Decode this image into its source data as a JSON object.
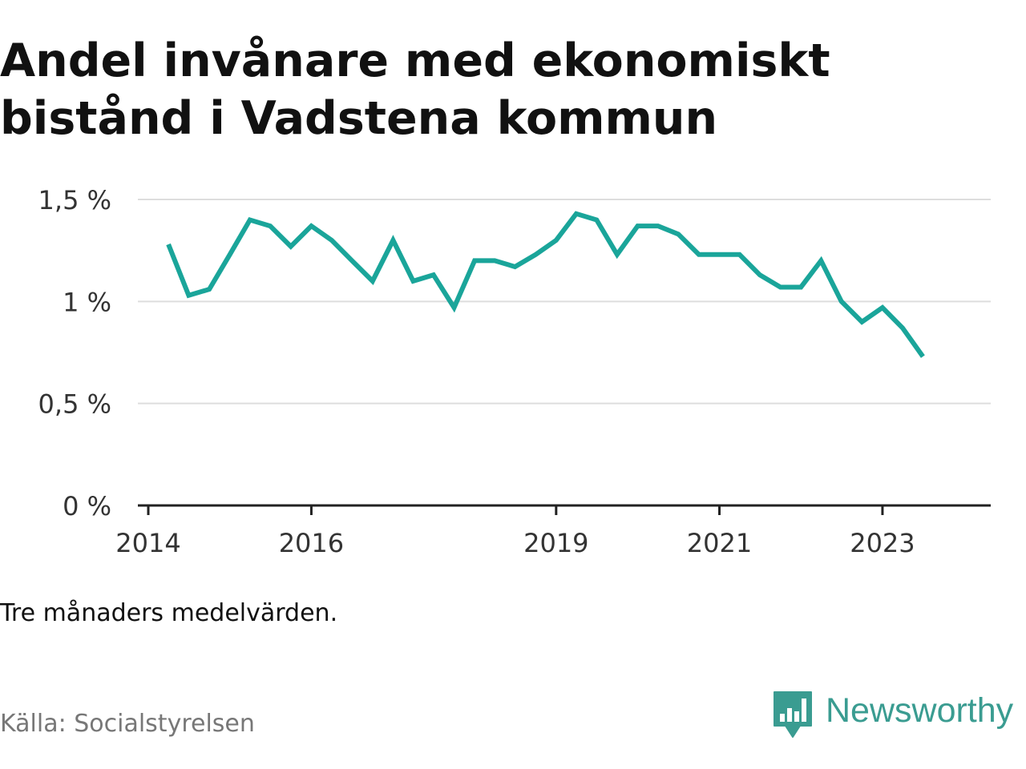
{
  "title": "Andel invånare med ekonomiskt bistånd i Vadstena kommun",
  "note": "Tre månaders medelvärden.",
  "source": "Källa: Socialstyrelsen",
  "brand": {
    "name": "Newsworthy",
    "logo_icon": "bar-chart-speech-bubble-icon"
  },
  "colors": {
    "line": "#1aa59a",
    "grid": "#dddddd",
    "axis": "#222222",
    "brand": "#3a9c91"
  },
  "chart_data": {
    "type": "line",
    "title": "Andel invånare med ekonomiskt bistånd i Vadstena kommun",
    "xlabel": "",
    "ylabel": "",
    "ylim": [
      0,
      1.5
    ],
    "yticks": [
      {
        "value": 0,
        "label": "0 %"
      },
      {
        "value": 0.5,
        "label": "0,5 %"
      },
      {
        "value": 1,
        "label": "1 %"
      },
      {
        "value": 1.5,
        "label": "1,5 %"
      }
    ],
    "xlim": [
      "2014-01-01",
      "2024-01-31"
    ],
    "xticks": [
      {
        "date": "2014-01-01",
        "label": "2014"
      },
      {
        "date": "2016-01-01",
        "label": "2016"
      },
      {
        "date": "2019-01-01",
        "label": "2019"
      },
      {
        "date": "2021-01-01",
        "label": "2021"
      },
      {
        "date": "2023-01-01",
        "label": "2023"
      }
    ],
    "grid": true,
    "legend": "none",
    "series": [
      {
        "x": [
          "2014-04",
          "2014-07",
          "2014-10",
          "2015-01",
          "2015-04",
          "2015-07",
          "2015-10",
          "2016-01",
          "2016-04",
          "2016-07",
          "2016-10",
          "2017-01",
          "2017-04",
          "2017-07",
          "2017-10",
          "2018-01",
          "2018-04",
          "2018-07",
          "2018-10",
          "2019-01",
          "2019-04",
          "2019-07",
          "2019-10",
          "2020-01",
          "2020-04",
          "2020-07",
          "2020-10",
          "2021-01",
          "2021-04",
          "2021-07",
          "2021-10",
          "2022-01",
          "2022-04",
          "2022-07",
          "2022-10",
          "2023-01",
          "2023-04",
          "2023-07"
        ],
        "values": [
          1.28,
          1.03,
          1.06,
          1.23,
          1.4,
          1.37,
          1.27,
          1.37,
          1.3,
          1.2,
          1.1,
          1.3,
          1.1,
          1.13,
          0.97,
          1.2,
          1.2,
          1.17,
          1.23,
          1.3,
          1.43,
          1.4,
          1.23,
          1.37,
          1.37,
          1.33,
          1.23,
          1.23,
          1.23,
          1.13,
          1.07,
          1.07,
          1.2,
          1.0,
          0.9,
          0.97,
          0.87,
          0.73
        ]
      }
    ]
  }
}
